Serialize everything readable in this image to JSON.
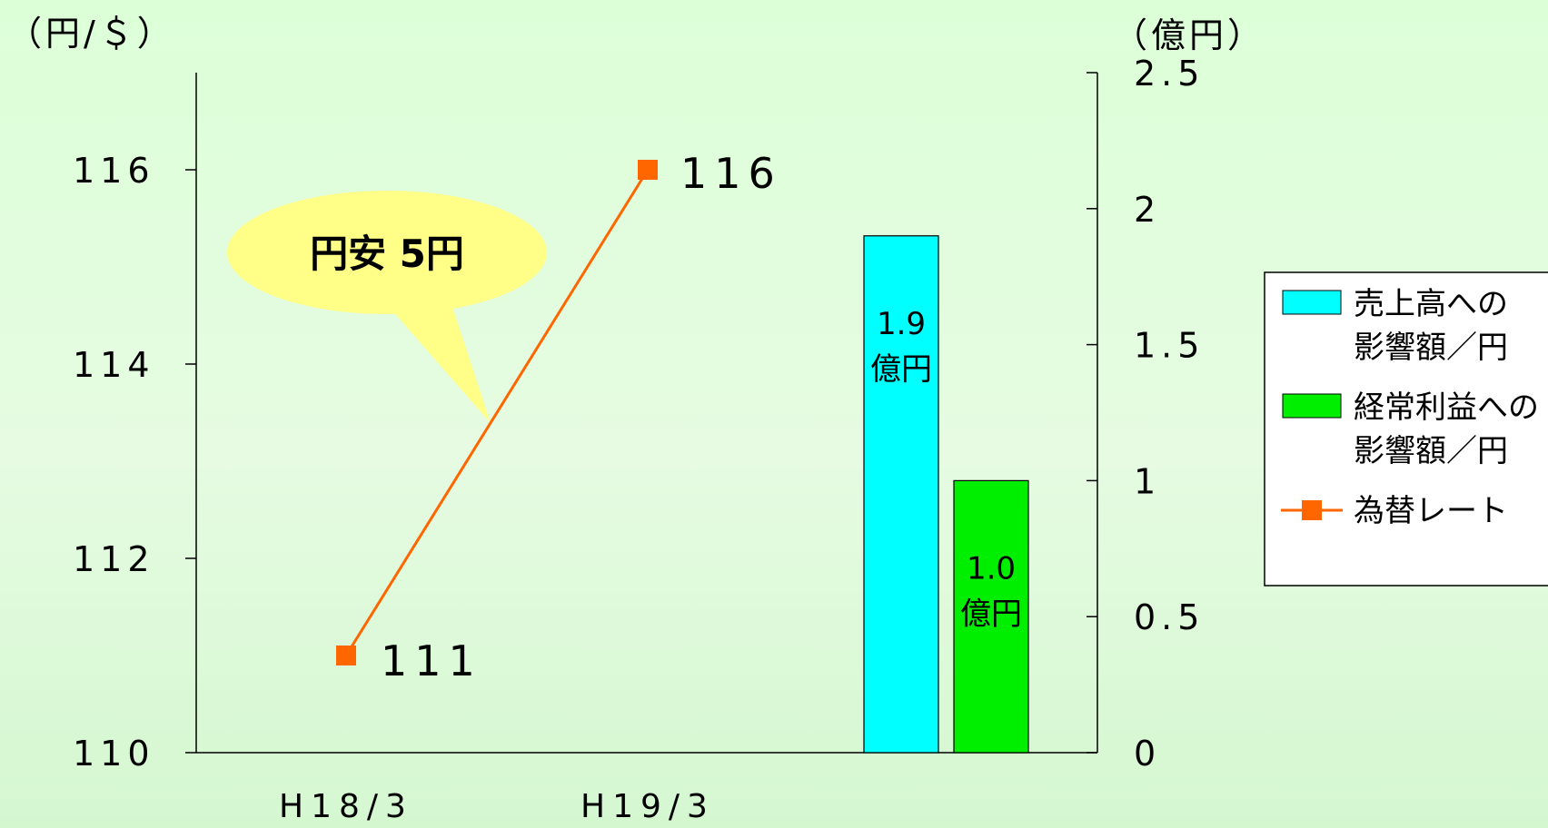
{
  "chart_data": {
    "type": "bar",
    "y_left_unit": "（円/＄）",
    "y_right_unit": "（億円）",
    "y_left_ticks": [
      "110",
      "112",
      "114",
      "116"
    ],
    "y_right_ticks": [
      "0",
      "0.5",
      "1",
      "1.5",
      "2",
      "2.5"
    ],
    "ylim_left": [
      110,
      117
    ],
    "ylim_right": [
      0,
      2.5
    ],
    "categories": [
      "H18/3",
      "H19/3"
    ],
    "line_series": {
      "name": "為替レート",
      "values": [
        111,
        116
      ],
      "labels": [
        "111",
        "116"
      ],
      "color": "#ff6600"
    },
    "bar_series": [
      {
        "name": "売上高への影響額／円",
        "legend_lines": [
          "売上高への",
          "影響額／円"
        ],
        "value": 1.9,
        "label_lines": [
          "1.9",
          "億円"
        ],
        "color": "#00ffff"
      },
      {
        "name": "経常利益への影響額／円",
        "legend_lines": [
          "経常利益への",
          "影響額／円"
        ],
        "value": 1.0,
        "label_lines": [
          "1.0",
          "億円"
        ],
        "color": "#00ee00"
      }
    ],
    "annotation": "円安 5円",
    "annotation_color": "#ffff88",
    "legend_position": "right"
  }
}
